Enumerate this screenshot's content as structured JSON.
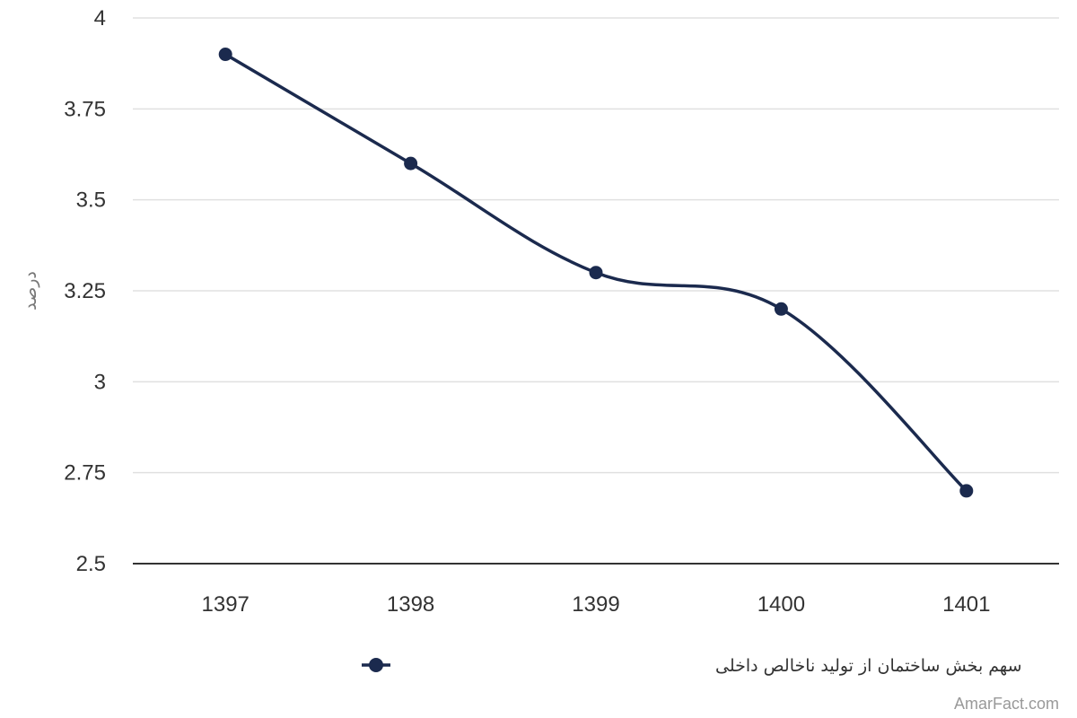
{
  "chart_data": {
    "type": "line",
    "x": [
      "1397",
      "1398",
      "1399",
      "1400",
      "1401"
    ],
    "series": [
      {
        "name": "سهم بخش ساختمان از تولید ناخالص داخلی",
        "values": [
          3.9,
          3.6,
          3.3,
          3.2,
          2.7
        ]
      }
    ],
    "ylabel": "درصد",
    "yticks": [
      "2.5",
      "2.75",
      "3",
      "3.25",
      "3.5",
      "3.75",
      "4"
    ],
    "ylim": [
      2.5,
      4
    ],
    "grid": true,
    "legend": "bottom-center",
    "line_color": "#1b2a4e"
  },
  "credit": "AmarFact.com"
}
